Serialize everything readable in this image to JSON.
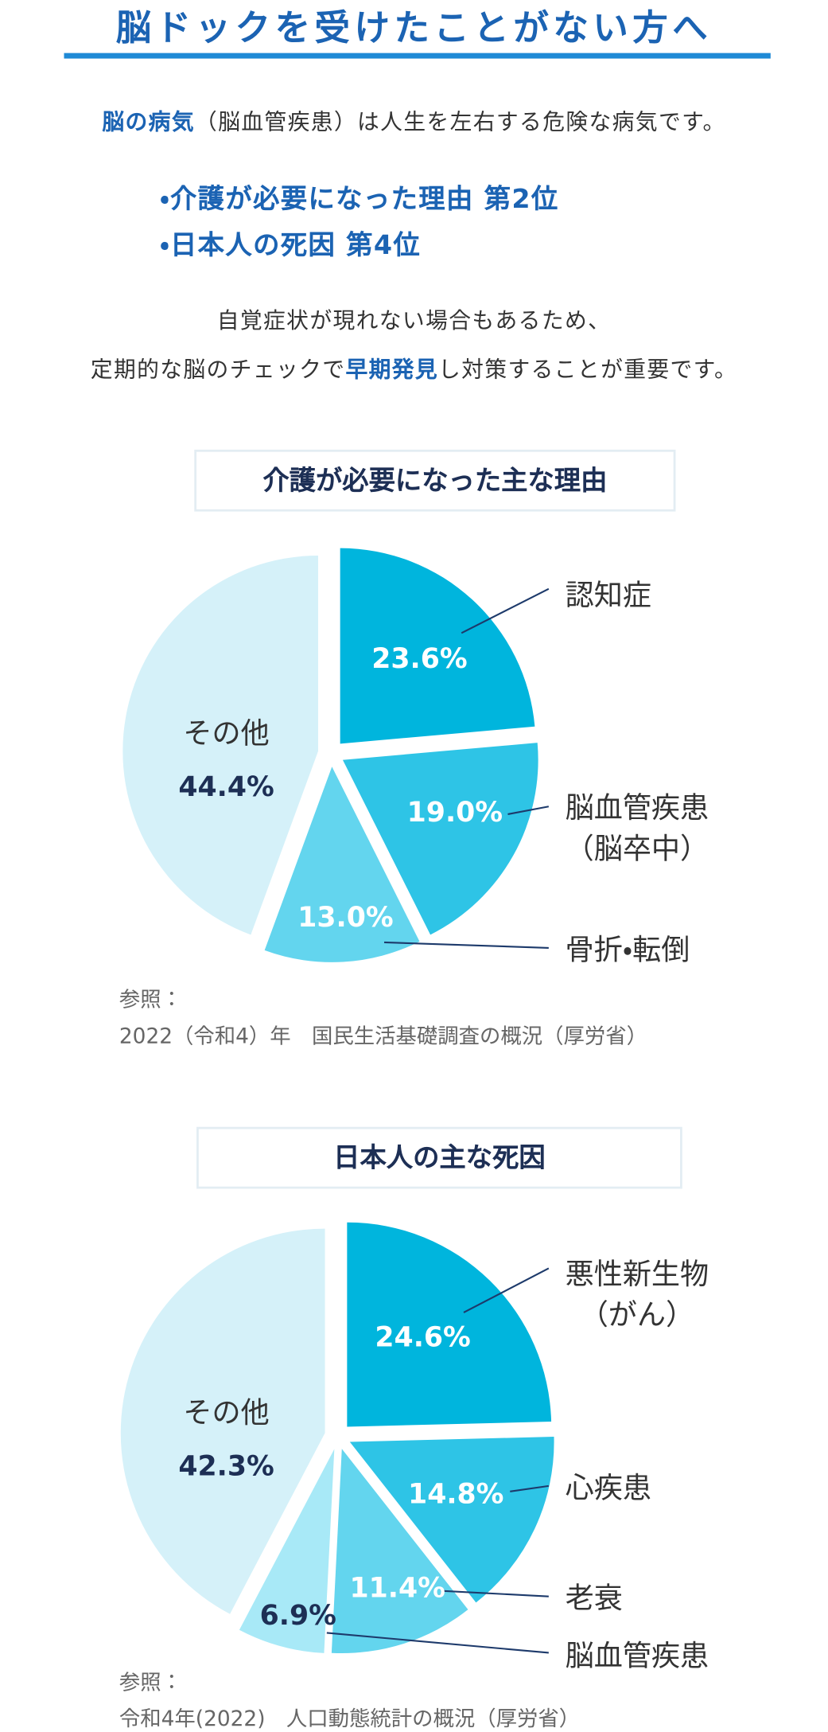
{
  "header": {
    "title": "脳ドックを受けたことがない方へ"
  },
  "intro": {
    "highlight": "脳の病気",
    "text": "（脳血管疾患）は人生を左右する危険な病気です。"
  },
  "points": [
    "・介護が必要になった理由 第2位",
    "・日本人の死因 第4位"
  ],
  "note": {
    "line1": "自覚症状が現れない場合もあるため、",
    "line2_before": "定期的な脳のチェックで",
    "line2_highlight": "早期発見",
    "line2_after": "し対策することが重要です。"
  },
  "chart_data": [
    {
      "type": "pie",
      "title": "介護が必要になった主な理由",
      "categories": [
        "認知症",
        "脳血管疾患\n（脳卒中）",
        "骨折・転倒",
        "その他"
      ],
      "values": [
        23.6,
        19.0,
        13.0,
        44.4
      ],
      "value_labels": [
        "23.6%",
        "19.0%",
        "13.0%",
        "44.4%"
      ],
      "colors": [
        "#00b5dd",
        "#2ec4e6",
        "#63d5ee",
        "#d5f1f9"
      ],
      "source": [
        "参照：",
        "2022（令和4）年　国民生活基礎調査の概況（厚労省）"
      ]
    },
    {
      "type": "pie",
      "title": "日本人の主な死因",
      "categories": [
        "悪性新生物\n（がん）",
        "心疾患",
        "老衰",
        "脳血管疾患",
        "その他"
      ],
      "values": [
        24.6,
        14.8,
        11.4,
        6.9,
        42.3
      ],
      "value_labels": [
        "24.6%",
        "14.8%",
        "11.4%",
        "6.9%",
        "42.3%"
      ],
      "colors": [
        "#00b5dd",
        "#2ec4e6",
        "#63d5ee",
        "#a8e9f7",
        "#d5f1f9"
      ],
      "source": [
        "参照：",
        "令和4年(2022)　人口動態統計の概況（厚労省）"
      ]
    }
  ]
}
